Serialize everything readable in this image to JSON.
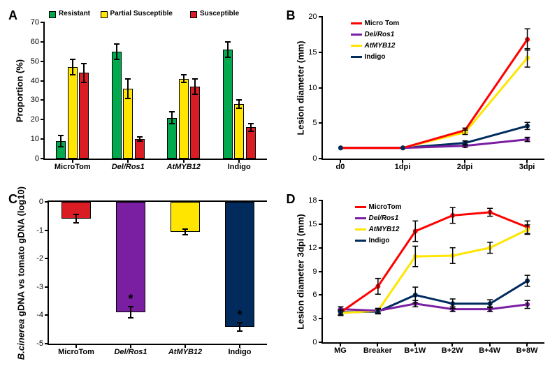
{
  "panelA": {
    "label": "A",
    "type": "bar",
    "ylabel": "Proportion (%)",
    "ylim": [
      0,
      70
    ],
    "ytick_step": 10,
    "categories": [
      "MicroTom",
      "Del/Ros1",
      "AtMYB12",
      "Indigo"
    ],
    "category_italic": [
      false,
      true,
      true,
      false
    ],
    "series": [
      {
        "name": "Resistant",
        "color": "#00a94e",
        "values": [
          9,
          55,
          21,
          56
        ],
        "err": [
          3,
          4,
          3,
          4
        ]
      },
      {
        "name": "Partial Susceptible",
        "color": "#ffe500",
        "values": [
          47,
          36,
          41,
          28
        ],
        "err": [
          4,
          5,
          2,
          2
        ]
      },
      {
        "name": "Susceptible",
        "color": "#da1c24",
        "values": [
          44,
          10,
          37,
          16
        ],
        "err": [
          5,
          1,
          4,
          2
        ]
      }
    ],
    "legend_box_border": "#000000",
    "label_fontsize": 11,
    "title_fontsize": 13
  },
  "panelB": {
    "label": "B",
    "type": "line",
    "ylabel": "Lesion diameter (mm)",
    "ylim": [
      0,
      20
    ],
    "ytick_step": 5,
    "x_categories": [
      "d0",
      "1dpi",
      "2dpi",
      "3dpi"
    ],
    "series": [
      {
        "name": "Micro Tom",
        "italic": false,
        "color": "#ff0000",
        "values": [
          1.5,
          1.5,
          4.0,
          16.8
        ],
        "err": [
          0,
          0,
          0.3,
          1.5
        ]
      },
      {
        "name": "Del/Ros1",
        "italic": true,
        "color": "#7b1fa2",
        "values": [
          1.5,
          1.5,
          1.8,
          2.7
        ],
        "err": [
          0,
          0,
          0.2,
          0.3
        ]
      },
      {
        "name": "AtMYB12",
        "italic": true,
        "color": "#ffe500",
        "values": [
          1.5,
          1.5,
          3.7,
          14.2
        ],
        "err": [
          0,
          0,
          0.3,
          1.3
        ]
      },
      {
        "name": "Indigo",
        "italic": false,
        "color": "#002b5c",
        "values": [
          1.5,
          1.5,
          2.2,
          4.6
        ],
        "err": [
          0,
          0,
          0.3,
          0.5
        ]
      }
    ],
    "line_width": 3,
    "label_fontsize": 11
  },
  "panelC": {
    "label": "C",
    "type": "bar",
    "ylabel_html": "<i>B.cinerea</i> gDNA vs tomato gDNA (log10)",
    "ylim": [
      -5,
      0
    ],
    "ytick_step": 1,
    "categories": [
      "MicroTom",
      "Del/Ros1",
      "AtMYB12",
      "Indigo"
    ],
    "category_italic": [
      false,
      true,
      true,
      false
    ],
    "bars": [
      {
        "value": -0.6,
        "err": 0.15,
        "color": "#da1c24",
        "star": false
      },
      {
        "value": -3.9,
        "err": 0.2,
        "color": "#7b1fa2",
        "star": true
      },
      {
        "value": -1.05,
        "err": 0.1,
        "color": "#ffe500",
        "star": false
      },
      {
        "value": -4.4,
        "err": 0.15,
        "color": "#002b5c",
        "star": true
      }
    ],
    "star_symbol": "*",
    "label_fontsize": 11
  },
  "panelD": {
    "label": "D",
    "type": "line",
    "ylabel": "Lesion diameter 3dpi (mm)",
    "ylim": [
      0,
      18
    ],
    "ytick_step": 3,
    "x_categories": [
      "MG",
      "Breaker",
      "B+1W",
      "B+2W",
      "B+4W",
      "B+8W"
    ],
    "series": [
      {
        "name": "MicroTom",
        "italic": false,
        "color": "#ff0000",
        "values": [
          3.8,
          7.1,
          14.1,
          16.1,
          16.5,
          14.6
        ],
        "err": [
          0.4,
          1.0,
          1.3,
          1.0,
          0.5,
          0.8
        ]
      },
      {
        "name": "Del/Ros1",
        "italic": true,
        "color": "#7b1fa2",
        "values": [
          4.2,
          4.0,
          4.9,
          4.2,
          4.2,
          4.8
        ],
        "err": [
          0.3,
          0.3,
          0.4,
          0.3,
          0.3,
          0.5
        ]
      },
      {
        "name": "AtMYB12",
        "italic": true,
        "color": "#ffe500",
        "values": [
          3.7,
          4.0,
          10.9,
          11.0,
          12.0,
          14.3
        ],
        "err": [
          0.3,
          0.3,
          1.3,
          1.0,
          0.7,
          0.6
        ]
      },
      {
        "name": "Indigo",
        "italic": false,
        "color": "#002b5c",
        "values": [
          3.8,
          3.9,
          6.0,
          4.9,
          4.9,
          7.8
        ],
        "err": [
          0.3,
          0.3,
          1.0,
          0.6,
          0.5,
          0.7
        ]
      }
    ],
    "line_width": 3,
    "label_fontsize": 11
  },
  "axis_color": "#000000",
  "background_color": "#ffffff"
}
